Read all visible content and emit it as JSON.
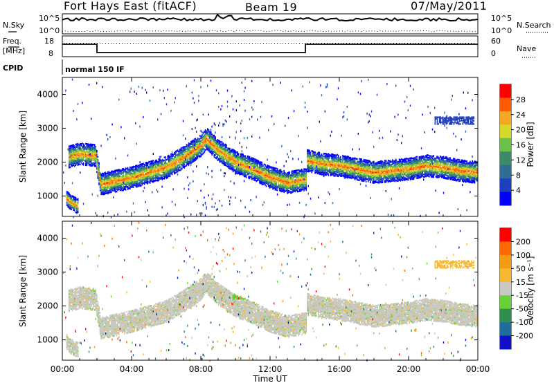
{
  "header": {
    "title": "Fort Hays East (fitACF)",
    "beam": "Beam 19",
    "date": "07/May/2011"
  },
  "status_panels": {
    "nsky_label": "N.Sky",
    "nsearch_label": "N.Search",
    "noise_ticks": [
      "10^5",
      "10^0"
    ],
    "freq_label": "Freq.",
    "freq_unit": "[MHz]",
    "freq_ticks": [
      "18",
      "8"
    ],
    "nave_label": "Nave",
    "nave_ticks": [
      "60",
      "0"
    ],
    "cpid_label": "CPID",
    "cpid_value": "normal 150 IF"
  },
  "colors": {
    "power_scale": [
      "#0000ff",
      "#1e3fbe",
      "#2e6e95",
      "#3d8a6a",
      "#6bc04a",
      "#d7d82a",
      "#f5a623",
      "#ff5a00",
      "#ff0000"
    ],
    "velocity_scale": [
      "#1010c8",
      "#1e6e9a",
      "#2f8f4f",
      "#66d036",
      "#c8c8c0",
      "#f5b830",
      "#f39a12",
      "#ff6a00",
      "#ff0000"
    ]
  },
  "chart_data": [
    {
      "type": "heatmap",
      "panel": "power",
      "ylabel": "Slant Range [km]",
      "yticks": [
        "1000",
        "2000",
        "3000",
        "4000"
      ],
      "ylim": [
        400,
        4500
      ],
      "xlim": [
        0,
        24
      ],
      "colorbar_label": "Power [dB]",
      "colorbar_ticks": [
        "4",
        "8",
        "12",
        "16",
        "20",
        "24",
        "28"
      ],
      "bands_hours_km": [
        {
          "x": [
            0.3,
            1.0,
            1.9,
            2.2,
            4,
            6,
            7,
            8,
            8.3,
            9,
            10,
            11,
            12,
            13,
            14.1
          ],
          "y": [
            2150,
            2250,
            2200,
            1350,
            1550,
            1850,
            2150,
            2500,
            2700,
            2350,
            2000,
            1800,
            1550,
            1400,
            1500
          ]
        },
        {
          "x": [
            14.1,
            15,
            16,
            17,
            18,
            19,
            20,
            21,
            22,
            23,
            24
          ],
          "y": [
            2050,
            1950,
            1900,
            1800,
            1700,
            1750,
            1800,
            1900,
            1850,
            1750,
            1700
          ]
        },
        {
          "x": [
            0.2,
            0.5,
            0.9
          ],
          "y": [
            950,
            800,
            700
          ]
        }
      ]
    },
    {
      "type": "heatmap",
      "panel": "velocity",
      "xlabel": "Time UT",
      "ylabel": "Slant Range [km]",
      "xticks": [
        "00:00",
        "04:00",
        "08:00",
        "12:00",
        "16:00",
        "20:00",
        "00:00"
      ],
      "yticks": [
        "1000",
        "2000",
        "3000",
        "4000"
      ],
      "ylim": [
        400,
        4500
      ],
      "xlim": [
        0,
        24
      ],
      "colorbar_label": "Velocity [m s⁻¹]",
      "colorbar_ticks": [
        "200",
        "100",
        "50",
        "15",
        "-15",
        "-50",
        "-100",
        "-200"
      ]
    }
  ]
}
